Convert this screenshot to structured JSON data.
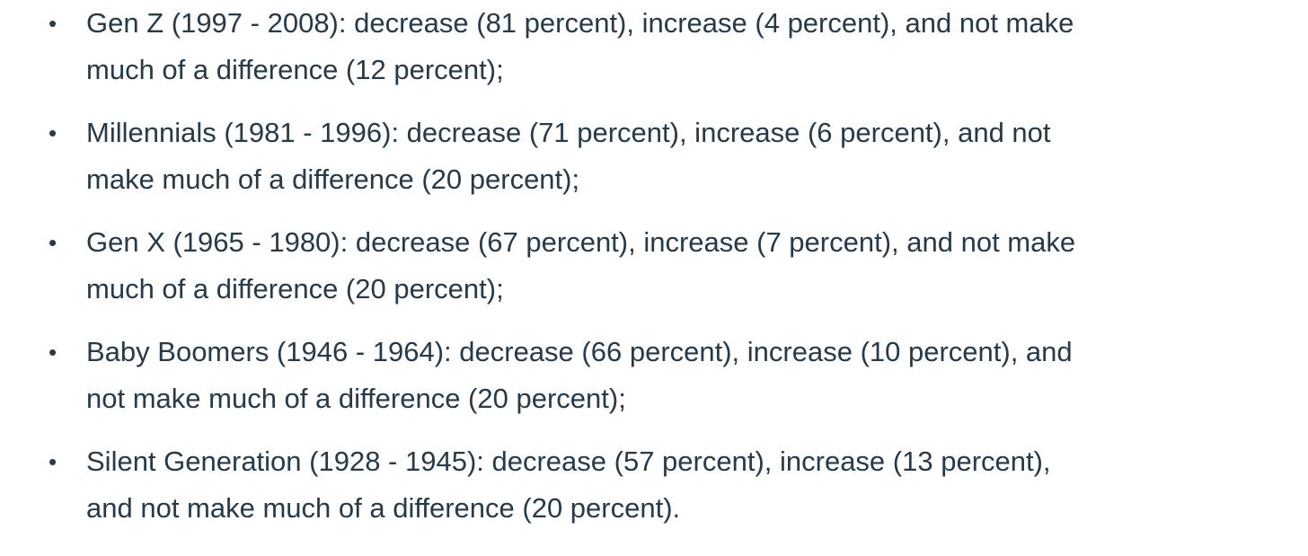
{
  "page": {
    "background_color": "#ffffff",
    "text_color": "#253a4b",
    "bullet_glyph": "•"
  },
  "list": {
    "items": [
      {
        "generation": "Gen Z",
        "years": "1997 - 2008",
        "decrease_percent": 81,
        "increase_percent": 4,
        "no_difference_percent": 12,
        "line1": "Gen Z (1997 - 2008): decrease (81 percent), increase (4 percent), and not make",
        "line2": "much of a difference (12 percent);"
      },
      {
        "generation": "Millennials",
        "years": "1981 - 1996",
        "decrease_percent": 71,
        "increase_percent": 6,
        "no_difference_percent": 20,
        "line1": "Millennials (1981 - 1996): decrease (71 percent), increase (6 percent), and not",
        "line2": "make much of a difference (20 percent);"
      },
      {
        "generation": "Gen X",
        "years": "1965 - 1980",
        "decrease_percent": 67,
        "increase_percent": 7,
        "no_difference_percent": 20,
        "line1": "Gen X (1965 - 1980): decrease (67 percent), increase (7 percent), and not make",
        "line2": "much of a difference (20 percent);"
      },
      {
        "generation": "Baby Boomers",
        "years": "1946 - 1964",
        "decrease_percent": 66,
        "increase_percent": 10,
        "no_difference_percent": 20,
        "line1": "Baby Boomers (1946 - 1964): decrease (66 percent), increase (10 percent), and",
        "line2": "not make much of a difference (20 percent);"
      },
      {
        "generation": "Silent Generation",
        "years": "1928 - 1945",
        "decrease_percent": 57,
        "increase_percent": 13,
        "no_difference_percent": 20,
        "line1": "Silent Generation (1928 - 1945): decrease (57 percent), increase (13 percent),",
        "line2": "and not make much of a difference (20 percent)."
      }
    ]
  }
}
